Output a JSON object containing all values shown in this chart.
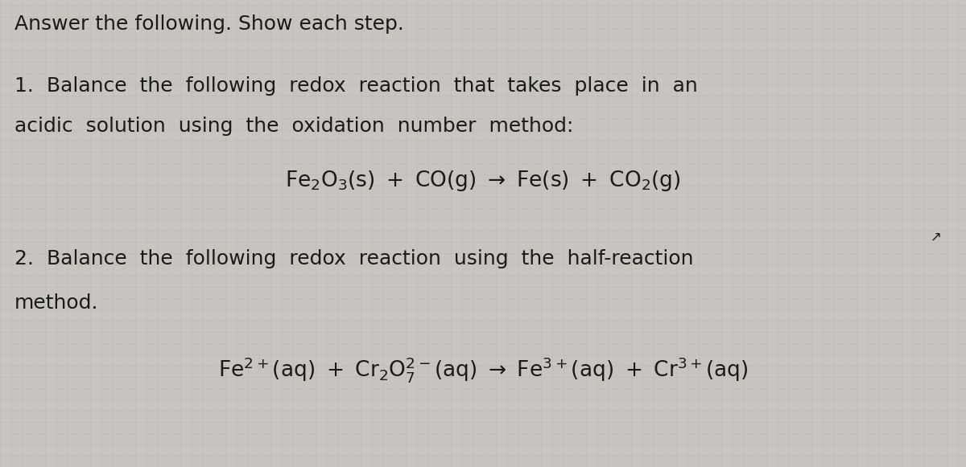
{
  "background_color": "#c8c4c0",
  "grid_color": "#b8b4b0",
  "text_color": "#1a1a1a",
  "title_text": "Answer the following. Show each step.",
  "title_fontsize": 18,
  "q1_line1": "1.  Balance  the  following  redox  reaction  that  takes  place  in  an",
  "q1_line2": "acidic  solution  using  the  oxidation  number  method:",
  "q1_fontsize": 18,
  "eq1_fontsize": 19,
  "q2_line1": "2.  Balance  the  following  redox  reaction  using  the  half-reaction",
  "q2_line2": "method.",
  "q2_fontsize": 18,
  "eq2_fontsize": 19,
  "font_family": "DejaVu Sans"
}
